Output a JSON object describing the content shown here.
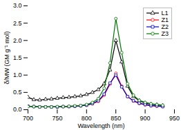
{
  "chart_data": {
    "type": "line",
    "xlabel": "Wavelength (nm)",
    "ylabel": "δ/MW (GM g⁻¹ mol)",
    "xlim": [
      700,
      950
    ],
    "ylim": [
      0.0,
      3.0
    ],
    "xticks": [
      700,
      750,
      800,
      850,
      900,
      950
    ],
    "yticks": [
      0.0,
      0.5,
      1.0,
      1.5,
      2.0,
      2.5,
      3.0
    ],
    "legend": "upper right",
    "x": [
      700,
      710,
      720,
      730,
      740,
      750,
      760,
      770,
      780,
      790,
      800,
      810,
      820,
      830,
      840,
      850,
      860,
      870,
      880,
      890,
      900,
      910,
      920,
      930
    ],
    "series": [
      {
        "name": "L1",
        "color": "#000000",
        "marker": "triangle",
        "values": [
          0.36,
          0.29,
          0.28,
          0.3,
          0.31,
          0.33,
          0.35,
          0.36,
          0.38,
          0.4,
          0.44,
          0.5,
          0.58,
          0.75,
          1.15,
          2.0,
          1.38,
          0.68,
          0.38,
          0.26,
          0.19,
          0.16,
          0.14,
          0.12
        ]
      },
      {
        "name": "Z1",
        "color": "#ff0000",
        "marker": "circle",
        "values": [
          0.1,
          0.09,
          0.08,
          0.08,
          0.08,
          0.08,
          0.09,
          0.09,
          0.1,
          0.11,
          0.13,
          0.17,
          0.24,
          0.42,
          0.74,
          1.05,
          0.68,
          0.38,
          0.25,
          0.18,
          0.14,
          0.11,
          0.1,
          0.09
        ]
      },
      {
        "name": "Z2",
        "color": "#0000cc",
        "marker": "square",
        "values": [
          0.1,
          0.09,
          0.08,
          0.08,
          0.08,
          0.08,
          0.09,
          0.09,
          0.1,
          0.11,
          0.13,
          0.18,
          0.26,
          0.45,
          0.77,
          1.0,
          0.66,
          0.38,
          0.26,
          0.19,
          0.15,
          0.12,
          0.11,
          0.09
        ]
      },
      {
        "name": "Z3",
        "color": "#007700",
        "marker": "circle",
        "values": [
          0.09,
          0.09,
          0.08,
          0.08,
          0.08,
          0.09,
          0.09,
          0.1,
          0.11,
          0.12,
          0.15,
          0.21,
          0.32,
          0.62,
          1.35,
          2.63,
          1.65,
          0.75,
          0.42,
          0.27,
          0.21,
          0.17,
          0.15,
          0.13
        ]
      }
    ]
  }
}
